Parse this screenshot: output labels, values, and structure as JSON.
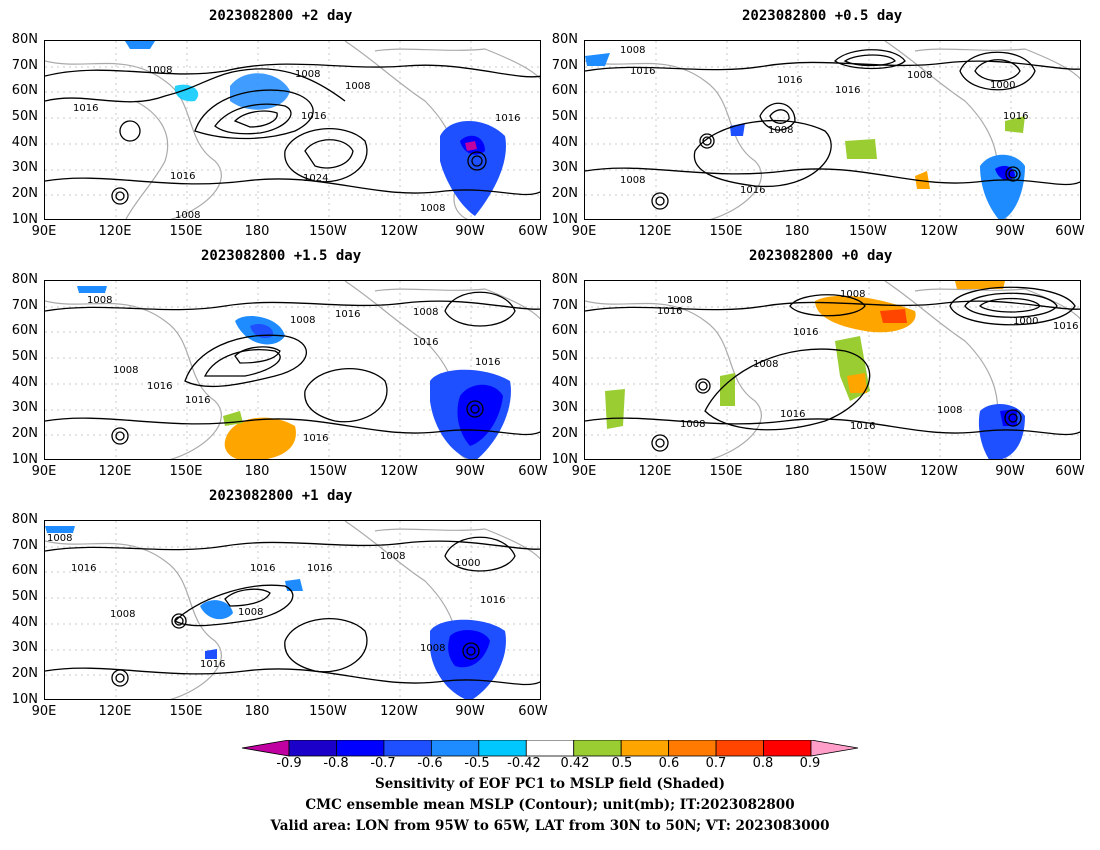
{
  "panels": [
    {
      "id": "p2",
      "title": "2023082800 +2 day",
      "isobars": [
        "1008",
        "1008",
        "1016",
        "1008",
        "1016",
        "1024",
        "1016",
        "1008",
        "1008",
        "1016"
      ]
    },
    {
      "id": "p05",
      "title": "2023082800 +0.5 day",
      "isobars": [
        "1008",
        "1016",
        "1008",
        "1000",
        "1016",
        "1008",
        "1016",
        "1008",
        "1016",
        "1016"
      ]
    },
    {
      "id": "p15",
      "title": "2023082800 +1.5 day",
      "isobars": [
        "1008",
        "1008",
        "1016",
        "1008",
        "1016",
        "1008",
        "1016",
        "1016",
        "1016"
      ]
    },
    {
      "id": "p0",
      "title": "2023082800 +0 day",
      "isobars": [
        "1008",
        "1016",
        "1008",
        "1000",
        "1016",
        "1016",
        "1008",
        "1016",
        "1008",
        "1008"
      ]
    },
    {
      "id": "p1",
      "title": "2023082800 +1 day",
      "isobars": [
        "1008",
        "1016",
        "1008",
        "1016",
        "1016",
        "1008",
        "1000",
        "1008",
        "1016",
        "1016",
        "1008"
      ]
    }
  ],
  "axes": {
    "lat_labels": [
      "80N",
      "70N",
      "60N",
      "50N",
      "40N",
      "30N",
      "20N",
      "10N"
    ],
    "lon_labels": [
      "90E",
      "120E",
      "150E",
      "180",
      "150W",
      "120W",
      "90W",
      "60W"
    ]
  },
  "colorbar": {
    "labels": [
      "-0.9",
      "-0.8",
      "-0.7",
      "-0.6",
      "-0.5",
      "-0.42",
      "0.42",
      "0.5",
      "0.6",
      "0.7",
      "0.8",
      "0.9"
    ],
    "colors": [
      "#1a00c8",
      "#0000ff",
      "#1e50ff",
      "#1e8cff",
      "#00c8ff",
      "#ffffff",
      "#9acd32",
      "#ffa500",
      "#ff7a00",
      "#ff4500",
      "#ff0000"
    ],
    "low_color": "#c000a0",
    "high_color": "#ff9ec8"
  },
  "captions": [
    "Sensitivity of EOF PC1 to MSLP field (Shaded)",
    "CMC ensemble mean MSLP (Contour); unit(mb); IT:2023082800",
    "Valid area: LON from 95W to 65W, LAT from 30N to 50N; VT: 2023083000"
  ]
}
